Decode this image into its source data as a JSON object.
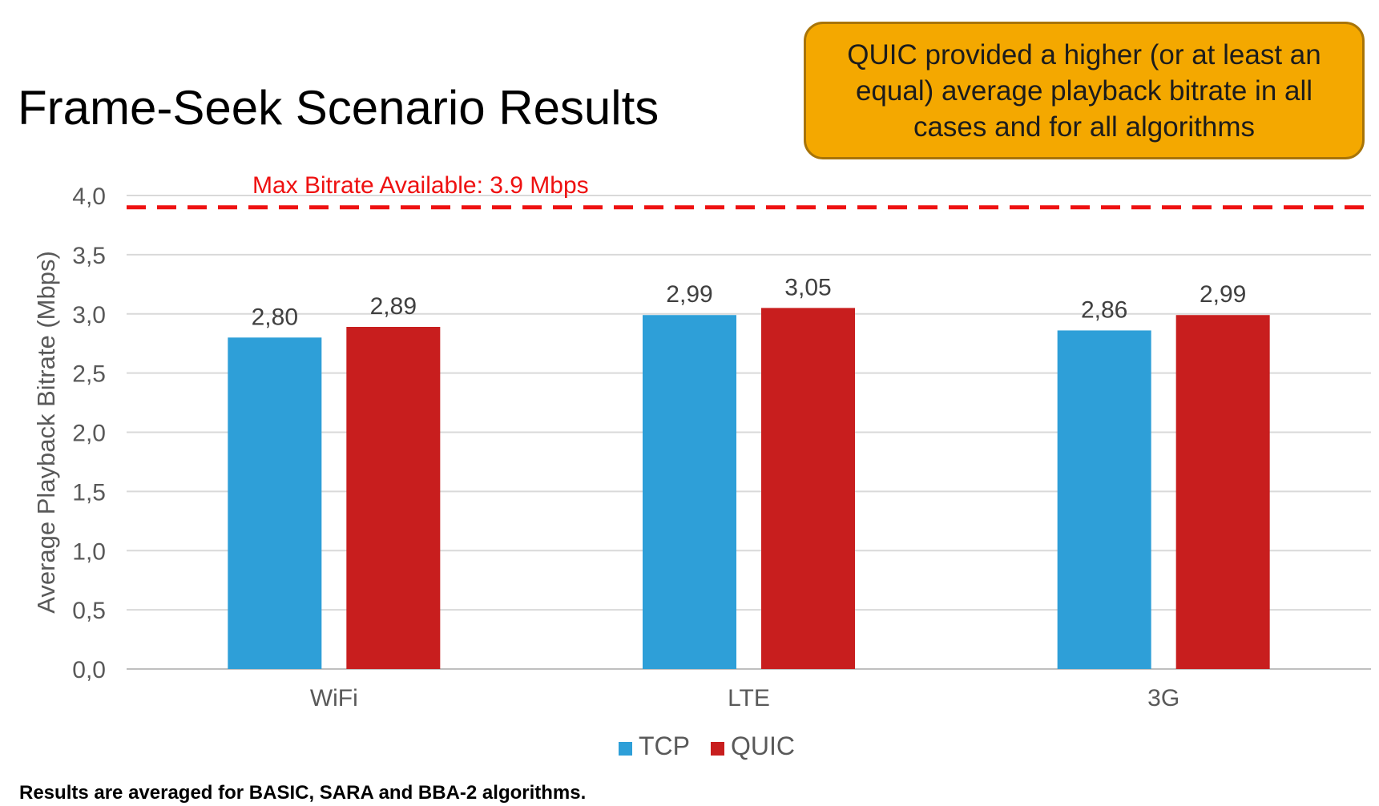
{
  "slide": {
    "title": "Frame-Seek Scenario Results",
    "callout": "QUIC provided a higher (or at least an equal) average playback bitrate in all cases and for all algorithms",
    "footnote": "Results are averaged for BASIC, SARA and BBA-2 algorithms."
  },
  "chart_data": {
    "type": "bar",
    "categories": [
      "WiFi",
      "LTE",
      "3G"
    ],
    "series": [
      {
        "name": "TCP",
        "values": [
          2.8,
          2.99,
          2.86
        ],
        "labels": [
          "2,80",
          "2,99",
          "2,86"
        ],
        "color": "#2e9fd8"
      },
      {
        "name": "QUIC",
        "values": [
          2.89,
          3.05,
          2.99
        ],
        "labels": [
          "2,89",
          "3,05",
          "2,99"
        ],
        "color": "#c81e1e"
      }
    ],
    "ylabel": "Average Playback Bitrate (Mbps)",
    "xlabel": "",
    "ylim": [
      0,
      4
    ],
    "yticks": [
      0,
      0.5,
      1,
      1.5,
      2,
      2.5,
      3,
      3.5,
      4
    ],
    "ytick_labels": [
      "0,0",
      "0,5",
      "1,0",
      "1,5",
      "2,0",
      "2,5",
      "3,0",
      "3,5",
      "4,0"
    ],
    "grid": true,
    "legend": "bottom",
    "reference_line": {
      "value": 3.9,
      "label": "Max Bitrate Available:  3.9 Mbps",
      "color": "#ee1111",
      "style": "dashed"
    }
  }
}
